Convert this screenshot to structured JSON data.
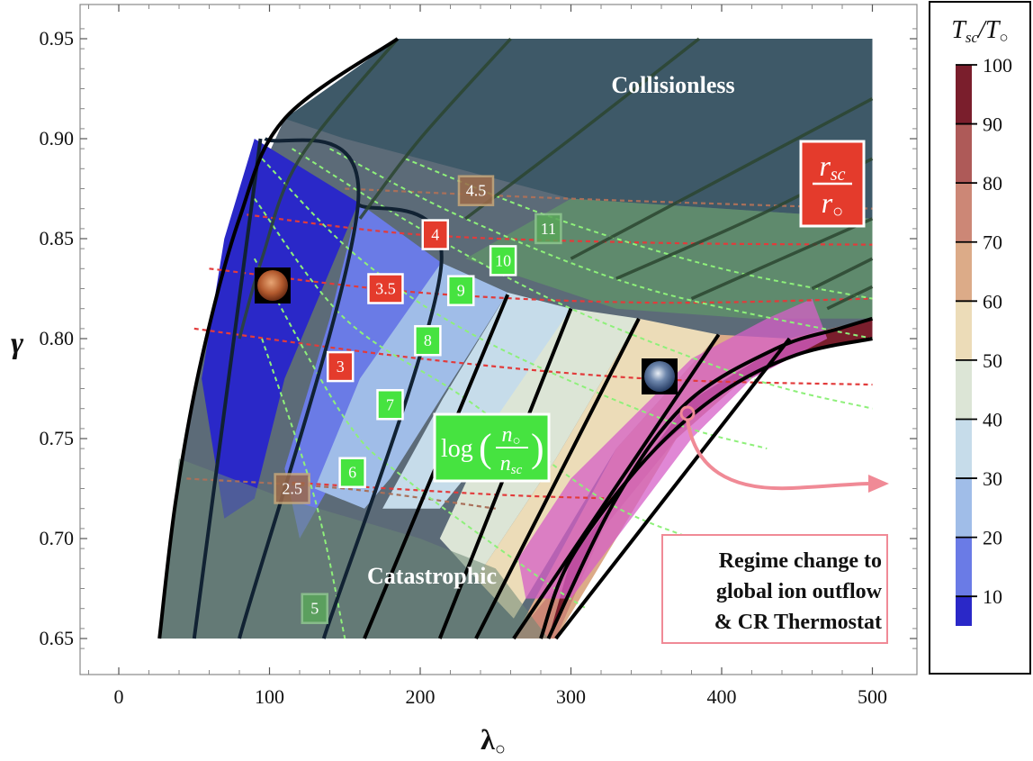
{
  "chart_data": {
    "type": "contour",
    "xlabel": "λ",
    "xlabel_sub": "○",
    "ylabel": "γ",
    "xlim": [
      -25,
      510
    ],
    "ylim": [
      0.643,
      0.967
    ],
    "x_ticks": [
      0,
      100,
      200,
      300,
      400,
      500
    ],
    "y_ticks": [
      0.65,
      0.7,
      0.75,
      0.8,
      0.85,
      0.9,
      0.95
    ],
    "x_tick_labels": [
      "0",
      "100",
      "200",
      "300",
      "400",
      "500"
    ],
    "y_tick_labels": [
      "0.65",
      "0.70",
      "0.75",
      "0.80",
      "0.85",
      "0.90",
      "0.95"
    ],
    "colorbar": {
      "title_main": "T",
      "title_sub1": "sc",
      "title_slash": "/T",
      "title_sub2": "○",
      "min": 5,
      "max": 100,
      "ticks": [
        10,
        20,
        30,
        40,
        50,
        60,
        70,
        80,
        90,
        100
      ],
      "tick_labels": [
        "10",
        "20",
        "30",
        "40",
        "50",
        "60",
        "70",
        "80",
        "90",
        "100"
      ],
      "colors": [
        "#2a28c8",
        "#6a7be6",
        "#a0bde8",
        "#c6dcea",
        "#dce5d6",
        "#ecdcb8",
        "#dcab88",
        "#cc8776",
        "#ae5a58",
        "#7a1e2c"
      ]
    },
    "temperature_contours": [
      {
        "level": 10,
        "points": [
          [
            94,
            0.9
          ],
          [
            50,
            0.65
          ]
        ]
      },
      {
        "level": 20,
        "points": [
          [
            97,
            0.9
          ],
          [
            159,
            0.87
          ],
          [
            80,
            0.65
          ]
        ]
      },
      {
        "level": 30,
        "points": [
          [
            159,
            0.867
          ],
          [
            214,
            0.837
          ],
          [
            136,
            0.65
          ]
        ]
      },
      {
        "level": 40,
        "points": [
          [
            258,
            0.822
          ],
          [
            163,
            0.65
          ]
        ]
      },
      {
        "level": 50,
        "points": [
          [
            300,
            0.815
          ],
          [
            213,
            0.65
          ]
        ]
      },
      {
        "level": 60,
        "points": [
          [
            345,
            0.81
          ],
          [
            237,
            0.65
          ]
        ]
      },
      {
        "level": 70,
        "points": [
          [
            398,
            0.802
          ],
          [
            262,
            0.65
          ]
        ]
      },
      {
        "level": 80,
        "points": [
          [
            445,
            0.8
          ],
          [
            290,
            0.65
          ]
        ]
      },
      {
        "level": 90,
        "points": [
          [
            500,
            0.81
          ],
          [
            478,
            0.805
          ],
          [
            436,
            0.795
          ],
          [
            377,
            0.768
          ],
          [
            330,
            0.72
          ],
          [
            285,
            0.65
          ]
        ]
      }
    ],
    "radius_ratio_lines": [
      {
        "label": "2.5",
        "style": "brown",
        "points": [
          [
            45,
            0.73
          ],
          [
            150,
            0.725
          ],
          [
            250,
            0.715
          ]
        ]
      },
      {
        "label": "3",
        "style": "red",
        "points": [
          [
            50,
            0.805
          ],
          [
            200,
            0.79
          ],
          [
            350,
            0.78
          ],
          [
            500,
            0.777
          ]
        ]
      },
      {
        "label": "3.5",
        "style": "red",
        "points": [
          [
            60,
            0.835
          ],
          [
            200,
            0.823
          ],
          [
            350,
            0.818
          ],
          [
            500,
            0.82
          ]
        ]
      },
      {
        "label": "4",
        "style": "red",
        "points": [
          [
            85,
            0.862
          ],
          [
            200,
            0.852
          ],
          [
            350,
            0.848
          ],
          [
            500,
            0.847
          ]
        ]
      },
      {
        "label": "4.5",
        "style": "brown",
        "points": [
          [
            150,
            0.875
          ],
          [
            300,
            0.87
          ],
          [
            500,
            0.865
          ]
        ]
      },
      {
        "label": "",
        "style": "red",
        "points": [
          [
            115,
            0.728
          ],
          [
            250,
            0.722
          ],
          [
            330,
            0.72
          ]
        ]
      }
    ],
    "density_lines": [
      {
        "label": "5",
        "points": [
          [
            95,
            0.8
          ],
          [
            130,
            0.72
          ],
          [
            150,
            0.65
          ]
        ]
      },
      {
        "label": "6",
        "points": [
          [
            90,
            0.84
          ],
          [
            150,
            0.76
          ],
          [
            190,
            0.73
          ],
          [
            280,
            0.68
          ],
          [
            310,
            0.665
          ]
        ]
      },
      {
        "label": "7",
        "points": [
          [
            90,
            0.87
          ],
          [
            150,
            0.81
          ],
          [
            230,
            0.77
          ],
          [
            320,
            0.72
          ],
          [
            380,
            0.7
          ]
        ]
      },
      {
        "label": "8",
        "points": [
          [
            95,
            0.89
          ],
          [
            160,
            0.84
          ],
          [
            240,
            0.8
          ],
          [
            360,
            0.76
          ],
          [
            430,
            0.745
          ]
        ]
      },
      {
        "label": "9",
        "points": [
          [
            115,
            0.895
          ],
          [
            200,
            0.855
          ],
          [
            300,
            0.815
          ],
          [
            420,
            0.78
          ],
          [
            500,
            0.765
          ]
        ]
      },
      {
        "label": "10",
        "points": [
          [
            140,
            0.895
          ],
          [
            230,
            0.86
          ],
          [
            350,
            0.825
          ],
          [
            500,
            0.8
          ]
        ]
      },
      {
        "label": "11",
        "points": [
          [
            190,
            0.89
          ],
          [
            290,
            0.86
          ],
          [
            400,
            0.835
          ],
          [
            500,
            0.82
          ]
        ]
      }
    ],
    "box_labels": [
      {
        "text": "2.5",
        "x": 115,
        "y": 0.725,
        "kind": "brown"
      },
      {
        "text": "3",
        "x": 147,
        "y": 0.786,
        "kind": "red"
      },
      {
        "text": "3.5",
        "x": 177,
        "y": 0.825,
        "kind": "red"
      },
      {
        "text": "4",
        "x": 210,
        "y": 0.852,
        "kind": "red"
      },
      {
        "text": "4.5",
        "x": 237,
        "y": 0.874,
        "kind": "brown"
      },
      {
        "text": "5",
        "x": 130,
        "y": 0.665,
        "kind": "green-faded"
      },
      {
        "text": "6",
        "x": 155,
        "y": 0.733,
        "kind": "green"
      },
      {
        "text": "7",
        "x": 180,
        "y": 0.767,
        "kind": "green"
      },
      {
        "text": "8",
        "x": 205,
        "y": 0.799,
        "kind": "green"
      },
      {
        "text": "9",
        "x": 227,
        "y": 0.824,
        "kind": "green"
      },
      {
        "text": "10",
        "x": 255,
        "y": 0.839,
        "kind": "green"
      },
      {
        "text": "11",
        "x": 285,
        "y": 0.855,
        "kind": "green-faded"
      }
    ],
    "legend_boxes": {
      "radius_ratio": {
        "num": "r",
        "num_sub": "sc",
        "den": "r",
        "den_sub": "○"
      },
      "density_ratio": {
        "log": "log",
        "num": "n",
        "num_sub": "○",
        "den": "n",
        "den_sub": "sc"
      }
    },
    "markers": [
      {
        "name": "mars",
        "x": 100,
        "y": 0.826
      },
      {
        "name": "earth",
        "x": 357,
        "y": 0.781
      }
    ],
    "annotations": {
      "collisionless": "Collisionless",
      "catastrophic": "Catastrophic",
      "regime_note": [
        "Regime change to",
        "global ion outflow",
        "& CR Thermostat"
      ]
    }
  }
}
